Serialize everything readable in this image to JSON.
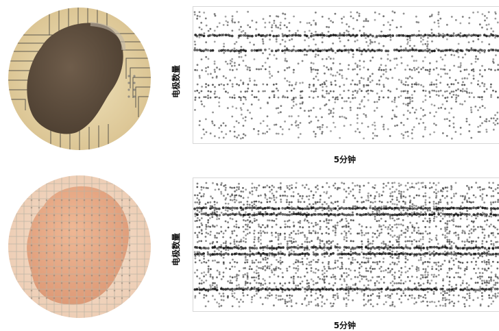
{
  "chart_data": [
    {
      "type": "scatter",
      "title": "",
      "xlabel": "5分钟",
      "ylabel": "电极数量",
      "xlim": [
        0,
        5
      ],
      "ylim": [
        0,
        60
      ],
      "grid": false,
      "dense_rows": [
        11,
        18
      ],
      "medium_rows": [
        27,
        34,
        37,
        40
      ],
      "sparse_density": 0.12,
      "row_count": 60
    },
    {
      "type": "scatter",
      "title": "",
      "xlabel": "5分钟",
      "ylabel": "电极数量",
      "xlim": [
        0,
        5
      ],
      "ylim": [
        0,
        60
      ],
      "grid": false,
      "dense_rows": [
        12,
        15,
        31,
        34,
        51
      ],
      "medium_rows": [
        2,
        6,
        9,
        18,
        21,
        24,
        28,
        38,
        41,
        45,
        48,
        54
      ],
      "sparse_density": 0.22,
      "row_count": 60
    }
  ],
  "images": {
    "top": "organoid-on-electrode-array-brown",
    "bottom": "organoid-on-electrode-grid-peach"
  },
  "colors": {
    "spike": "#111111",
    "top_bg": "#e7d6aa",
    "top_tissue": "#5a4a3a",
    "bottom_bg": "#f3d8c2",
    "bottom_tissue": "#e6a07a"
  }
}
